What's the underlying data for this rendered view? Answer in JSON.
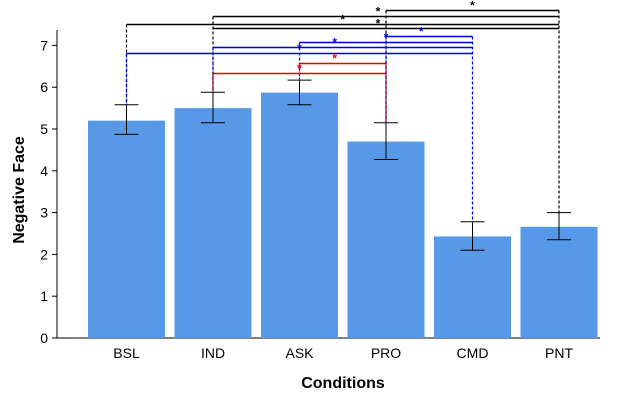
{
  "chart_data": {
    "type": "bar",
    "title": "",
    "xlabel": "Conditions",
    "ylabel": "Negative Face",
    "categories": [
      "BSL",
      "IND",
      "ASK",
      "PRO",
      "CMD",
      "PNT"
    ],
    "values": [
      5.2,
      5.5,
      5.87,
      4.7,
      2.43,
      2.66
    ],
    "error_low": [
      4.87,
      5.15,
      5.58,
      4.27,
      2.1,
      2.35
    ],
    "error_high": [
      5.58,
      5.88,
      6.17,
      5.15,
      2.78,
      3.0
    ],
    "ylim": [
      0,
      7.5
    ],
    "yticks": [
      0,
      1,
      2,
      3,
      4,
      5,
      6,
      7
    ],
    "bar_color": "#5799e6",
    "grid": false,
    "significance": [
      {
        "from": "BSL",
        "to": "PNT",
        "label": "*",
        "color": "#000000"
      },
      {
        "from": "IND",
        "to": "PNT",
        "label": "*",
        "color": "#000000"
      },
      {
        "from": "PRO",
        "to": "PNT",
        "label": "*",
        "color": "#000000"
      },
      {
        "from": "IND",
        "to": "PNT",
        "label": "*",
        "color": "#000000"
      },
      {
        "from": "BSL",
        "to": "CMD",
        "label": "*",
        "color": "#0000e6"
      },
      {
        "from": "IND",
        "to": "CMD",
        "label": "*",
        "color": "#0000e6"
      },
      {
        "from": "ASK",
        "to": "CMD",
        "label": "*",
        "color": "#0000e6"
      },
      {
        "from": "PRO",
        "to": "CMD",
        "label": "*",
        "color": "#0000e6"
      },
      {
        "from": "IND",
        "to": "PRO",
        "label": "*",
        "color": "#e60000"
      },
      {
        "from": "ASK",
        "to": "PRO",
        "label": "*",
        "color": "#e60000"
      }
    ]
  }
}
